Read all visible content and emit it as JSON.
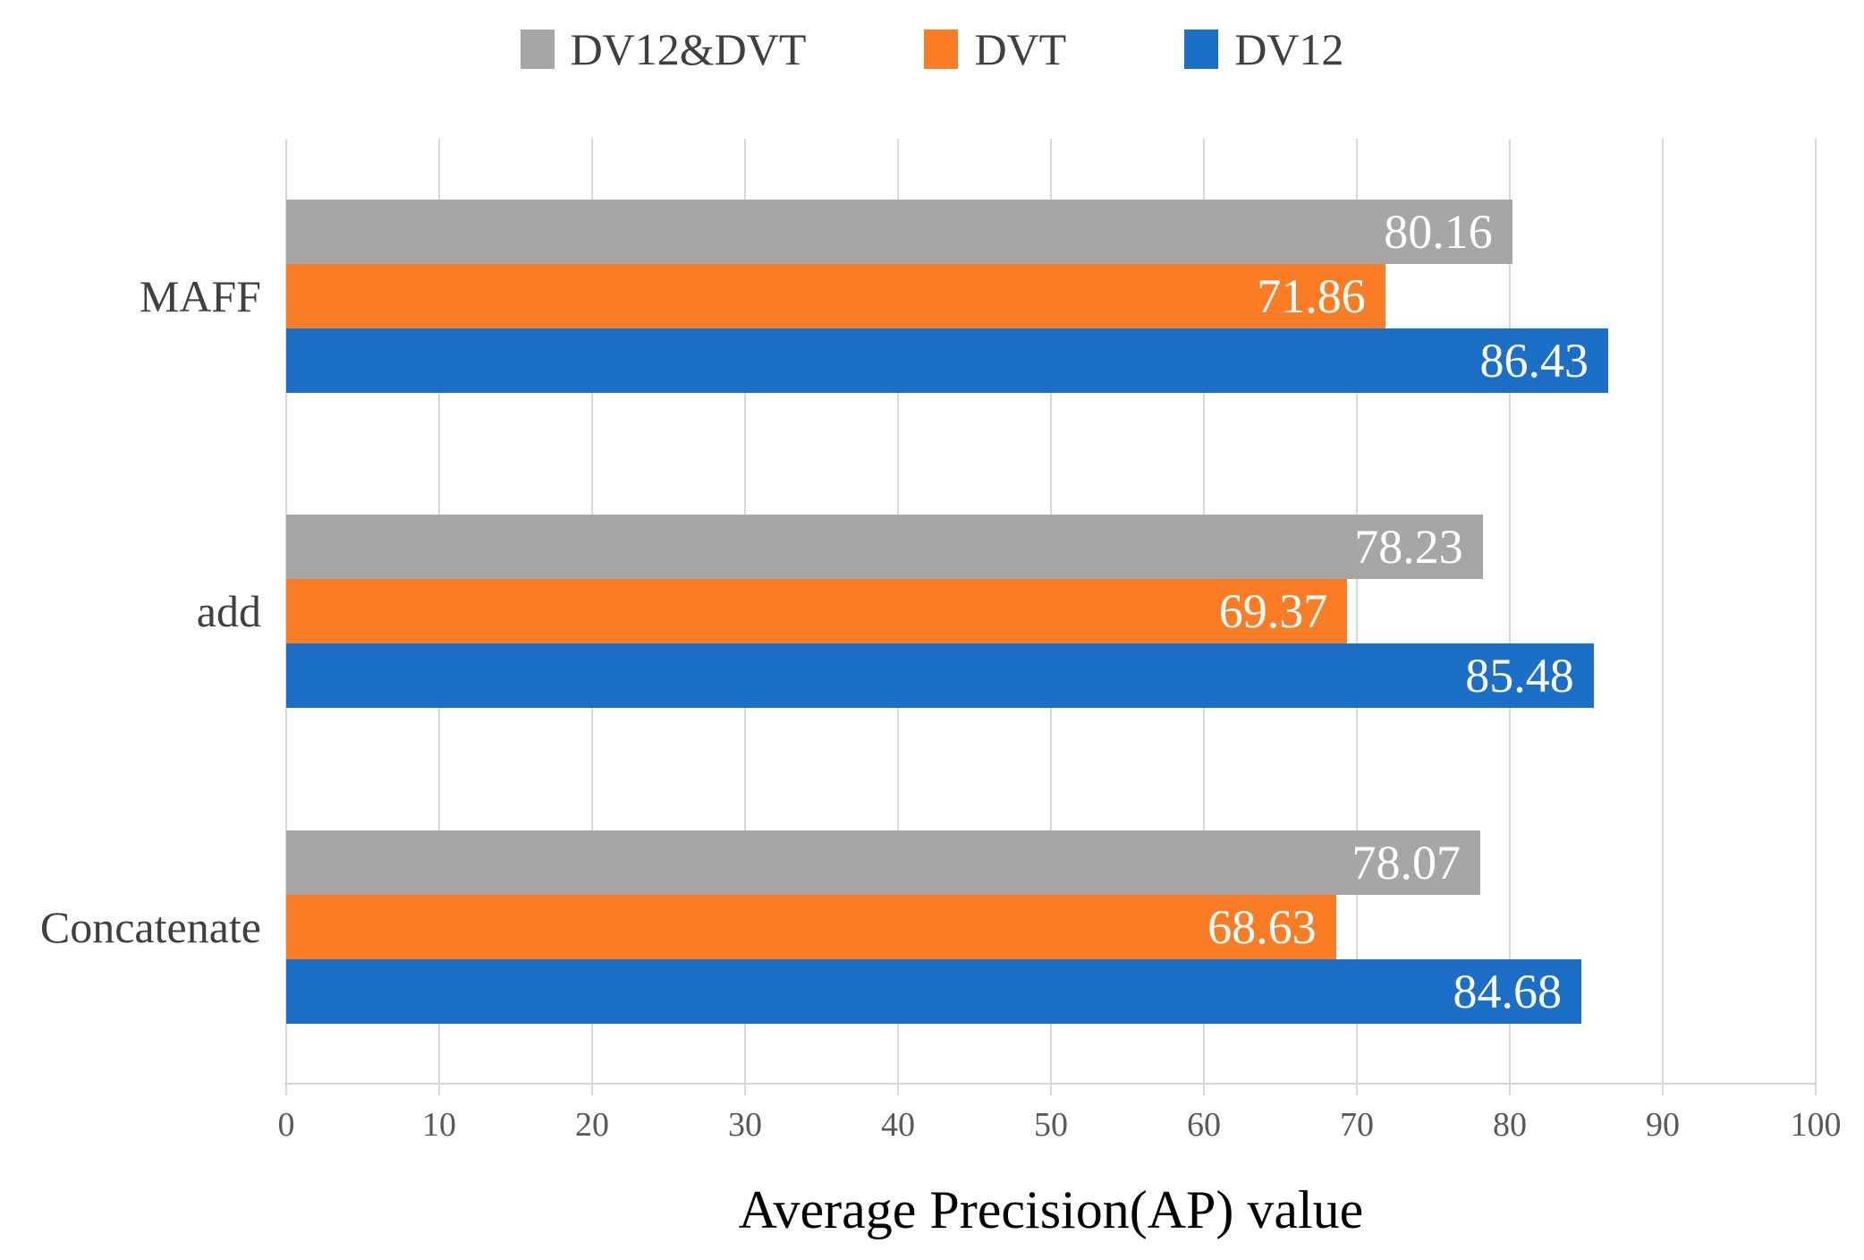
{
  "chart_data": {
    "type": "bar",
    "orientation": "horizontal",
    "title": "",
    "xlabel": "Average Precision(AP) value",
    "ylabel": "",
    "xlim": [
      0,
      100
    ],
    "xticks": [
      0,
      10,
      20,
      30,
      40,
      50,
      60,
      70,
      80,
      90,
      100
    ],
    "grid": true,
    "legend_position": "top",
    "value_labels": "inside-end",
    "value_label_decimals": 2,
    "value_label_color": "#ffffff",
    "categories": [
      "MAFF",
      "add",
      "Concatenate"
    ],
    "series": [
      {
        "name": "DV12&DVT",
        "color": "#A6A6A6",
        "values": [
          80.16,
          78.23,
          78.07
        ]
      },
      {
        "name": "DVT",
        "color": "#FA7D25",
        "values": [
          71.86,
          69.37,
          68.63
        ]
      },
      {
        "name": "DV12",
        "color": "#1C6FC7",
        "values": [
          86.43,
          85.48,
          84.68
        ]
      }
    ]
  }
}
